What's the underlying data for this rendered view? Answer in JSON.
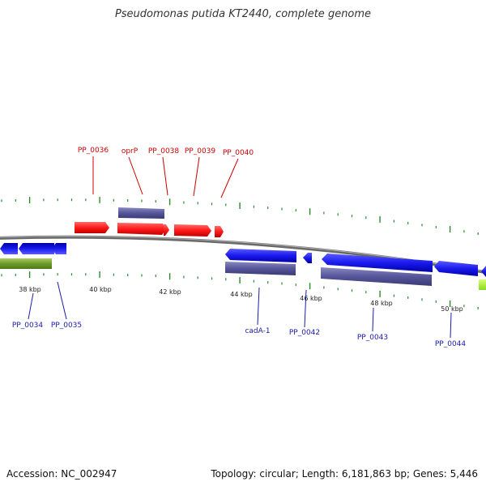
{
  "title": "Pseudomonas putida KT2440, complete genome",
  "accession": "Accession: NC_002947",
  "summary": "Topology: circular; Length: 6,181,863 bp; Genes: 5,446",
  "colors": {
    "forward_gene": "#ff1a1a",
    "reverse_gene": "#1a1aee",
    "cds_block": "#55559a",
    "rna_block": "#6e9a2a",
    "backbone": "#7f7f7f",
    "tick": "#2a8a2a",
    "forward_label": "#cc0000",
    "reverse_label": "#1a1aaa"
  },
  "scale_labels": [
    "38 kbp",
    "40 kbp",
    "42 kbp",
    "44 kbp",
    "46 kbp",
    "48 kbp",
    "50 kbp"
  ],
  "top_labels": [
    "PP_0036",
    "oprP",
    "PP_0038",
    "PP_0039",
    "PP_0040"
  ],
  "bottom_labels": [
    "PP_0034",
    "PP_0035",
    "cadA-1",
    "PP_0042",
    "PP_0043",
    "PP_0044"
  ]
}
